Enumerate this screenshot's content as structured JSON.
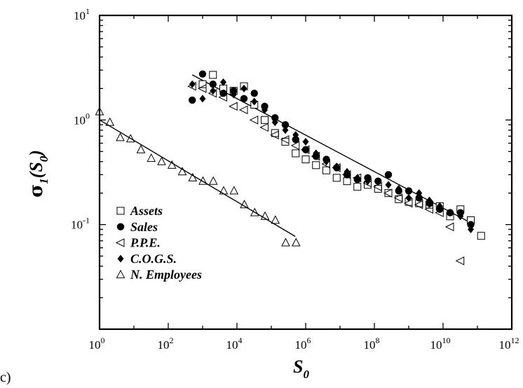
{
  "panel_label": "c)",
  "chart_data": {
    "type": "scatter",
    "xlabel": "S",
    "xlabel_sub": "0",
    "ylabel": "σ",
    "ylabel_sub": "1",
    "ylabel_args": "S",
    "ylabel_args_sub": "0",
    "xscale": "log",
    "yscale": "log",
    "xlim": [
      1,
      1000000000000.0
    ],
    "ylim": [
      0.01,
      10
    ],
    "x_ticks": [
      {
        "base": "10",
        "exp": "0",
        "value": 1
      },
      {
        "base": "10",
        "exp": "2",
        "value": 100
      },
      {
        "base": "10",
        "exp": "4",
        "value": 10000
      },
      {
        "base": "10",
        "exp": "6",
        "value": 1000000
      },
      {
        "base": "10",
        "exp": "8",
        "value": 100000000
      },
      {
        "base": "10",
        "exp": "10",
        "value": 10000000000
      },
      {
        "base": "10",
        "exp": "12",
        "value": 1000000000000
      }
    ],
    "y_ticks": [
      {
        "base": "10",
        "exp": "1",
        "value": 10
      },
      {
        "base": "10",
        "exp": "0",
        "value": 1
      },
      {
        "base": "10",
        "exp": "-1",
        "value": 0.1
      }
    ],
    "legend_position": "bottom-left",
    "series": [
      {
        "name": "Assets",
        "marker": "open-square",
        "x": [
          1000,
          2000,
          4000,
          8000,
          16000,
          32000,
          64000,
          128000,
          256000,
          512000,
          1000000,
          2000000,
          4000000,
          8000000,
          16000000,
          32000000,
          64000000,
          128000000,
          256000000,
          512000000,
          1000000000,
          2000000000,
          4000000000,
          8000000000,
          16000000000,
          32000000000,
          64000000000,
          128000000000
        ],
        "y": [
          2.2,
          2.7,
          2.0,
          1.9,
          2.1,
          1.4,
          1.0,
          0.75,
          0.62,
          0.48,
          0.42,
          0.37,
          0.33,
          0.28,
          0.26,
          0.23,
          0.24,
          0.22,
          0.2,
          0.175,
          0.165,
          0.16,
          0.155,
          0.15,
          0.12,
          0.14,
          0.11,
          0.078
        ]
      },
      {
        "name": "Sales",
        "marker": "filled-circle",
        "x": [
          500,
          1000,
          2000,
          4000,
          8000,
          16000,
          32000,
          64000,
          128000,
          256000,
          512000,
          1000000,
          2000000,
          4000000,
          8000000,
          16000000,
          32000000,
          64000000,
          128000000,
          256000000,
          512000000,
          1000000000,
          2000000000,
          4000000000,
          8000000000,
          16000000000,
          32000000000,
          64000000000
        ],
        "y": [
          1.55,
          2.75,
          2.2,
          1.8,
          1.9,
          1.6,
          1.8,
          1.35,
          1.05,
          0.9,
          0.65,
          0.52,
          0.45,
          0.42,
          0.35,
          0.3,
          0.27,
          0.28,
          0.26,
          0.3,
          0.21,
          0.21,
          0.18,
          0.16,
          0.14,
          0.13,
          0.13,
          0.1
        ]
      },
      {
        "name": "P.P.E.",
        "marker": "open-triangle-left",
        "x": [
          500,
          1000,
          2000,
          4000,
          8000,
          16000,
          32000,
          64000,
          128000,
          256000,
          512000,
          1000000,
          2000000,
          4000000,
          8000000,
          16000000,
          32000000,
          64000000,
          128000000,
          256000000,
          512000000,
          1000000000,
          2000000000,
          4000000000,
          8000000000,
          16000000000,
          32000000000
        ],
        "y": [
          2.1,
          2.0,
          1.8,
          1.65,
          1.35,
          1.25,
          1.0,
          0.85,
          0.72,
          0.65,
          0.57,
          0.52,
          0.45,
          0.38,
          0.35,
          0.3,
          0.28,
          0.25,
          0.23,
          0.2,
          0.18,
          0.16,
          0.155,
          0.14,
          0.13,
          0.095,
          0.045
        ]
      },
      {
        "name": "C.O.G.S.",
        "marker": "filled-diamond",
        "x": [
          500,
          1000,
          2000,
          4000,
          8000,
          16000,
          32000,
          64000,
          128000,
          256000,
          512000,
          1000000,
          2000000,
          4000000,
          8000000,
          16000000,
          32000000,
          64000000,
          128000000,
          256000000,
          512000000,
          1000000000,
          2000000000,
          4000000000,
          8000000000,
          16000000000,
          32000000000,
          64000000000
        ],
        "y": [
          2.2,
          1.6,
          1.9,
          2.3,
          1.75,
          2.0,
          1.5,
          1.25,
          0.95,
          0.8,
          0.72,
          0.62,
          0.48,
          0.4,
          0.36,
          0.32,
          0.28,
          0.26,
          0.26,
          0.24,
          0.22,
          0.18,
          0.2,
          0.17,
          0.15,
          0.13,
          0.12,
          0.09
        ]
      },
      {
        "name": "N. Employees",
        "marker": "open-triangle-up",
        "x": [
          1,
          2,
          4,
          8,
          16,
          32,
          64,
          128,
          256,
          512,
          1024,
          2048,
          4096,
          8192,
          16384,
          32768,
          65536,
          131072,
          262144,
          524288
        ],
        "y": [
          1.2,
          0.95,
          0.68,
          0.66,
          0.52,
          0.43,
          0.4,
          0.37,
          0.32,
          0.28,
          0.26,
          0.26,
          0.21,
          0.21,
          0.155,
          0.13,
          0.12,
          0.11,
          0.067,
          0.067
        ]
      }
    ],
    "fit_lines": [
      {
        "x": [
          1,
          500000
        ],
        "y": [
          1.0,
          0.077
        ]
      },
      {
        "x": [
          500,
          80000000000
        ],
        "y": [
          2.7,
          0.1
        ]
      }
    ]
  }
}
